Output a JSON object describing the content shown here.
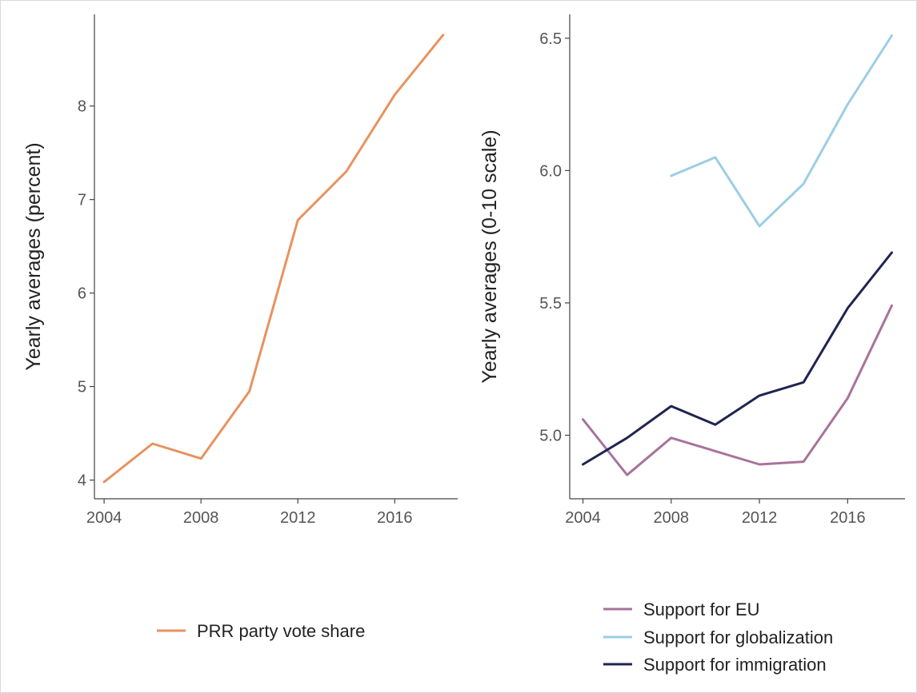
{
  "chart_data": [
    {
      "type": "line",
      "ylabel": "Yearly averages (percent)",
      "xlabel": "",
      "xlim": [
        2003.6,
        2018.6
      ],
      "ylim": [
        3.8,
        8.98
      ],
      "x_ticks": [
        2004,
        2008,
        2012,
        2016
      ],
      "y_ticks": [
        4,
        5,
        6,
        7,
        8
      ],
      "grid": false,
      "legend": "bottom",
      "x": [
        2004,
        2006,
        2008,
        2010,
        2012,
        2014,
        2016,
        2018
      ],
      "series": [
        {
          "name": "PRR party vote share",
          "color": "#e8925f",
          "values": [
            3.98,
            4.39,
            4.23,
            4.95,
            6.78,
            7.3,
            8.12,
            8.76
          ]
        }
      ]
    },
    {
      "type": "line",
      "ylabel": "Yearly averages (0-10 scale)",
      "xlabel": "",
      "xlim": [
        2003.4,
        2018.6
      ],
      "ylim": [
        4.76,
        6.59
      ],
      "x_ticks": [
        2004,
        2008,
        2012,
        2016
      ],
      "y_ticks": [
        5.0,
        5.5,
        6.0,
        6.5
      ],
      "y_tick_labels": [
        "5.0",
        "5.5",
        "6.0",
        "6.5"
      ],
      "grid": false,
      "legend": "bottom",
      "series": [
        {
          "name": "Support for EU",
          "color": "#a8739c",
          "x": [
            2004,
            2006,
            2008,
            2010,
            2012,
            2014,
            2016,
            2018
          ],
          "values": [
            5.06,
            4.85,
            4.99,
            4.94,
            4.89,
            4.9,
            5.14,
            5.49
          ]
        },
        {
          "name": "Support for globalization",
          "color": "#9dcde6",
          "x": [
            2008,
            2010,
            2012,
            2014,
            2016,
            2018
          ],
          "values": [
            5.98,
            6.05,
            5.79,
            5.95,
            6.25,
            6.51
          ]
        },
        {
          "name": "Support for immigration",
          "color": "#1f2450",
          "x": [
            2004,
            2006,
            2008,
            2010,
            2012,
            2014,
            2016,
            2018
          ],
          "values": [
            4.89,
            4.99,
            5.11,
            5.04,
            5.15,
            5.2,
            5.48,
            5.69
          ]
        }
      ]
    }
  ]
}
